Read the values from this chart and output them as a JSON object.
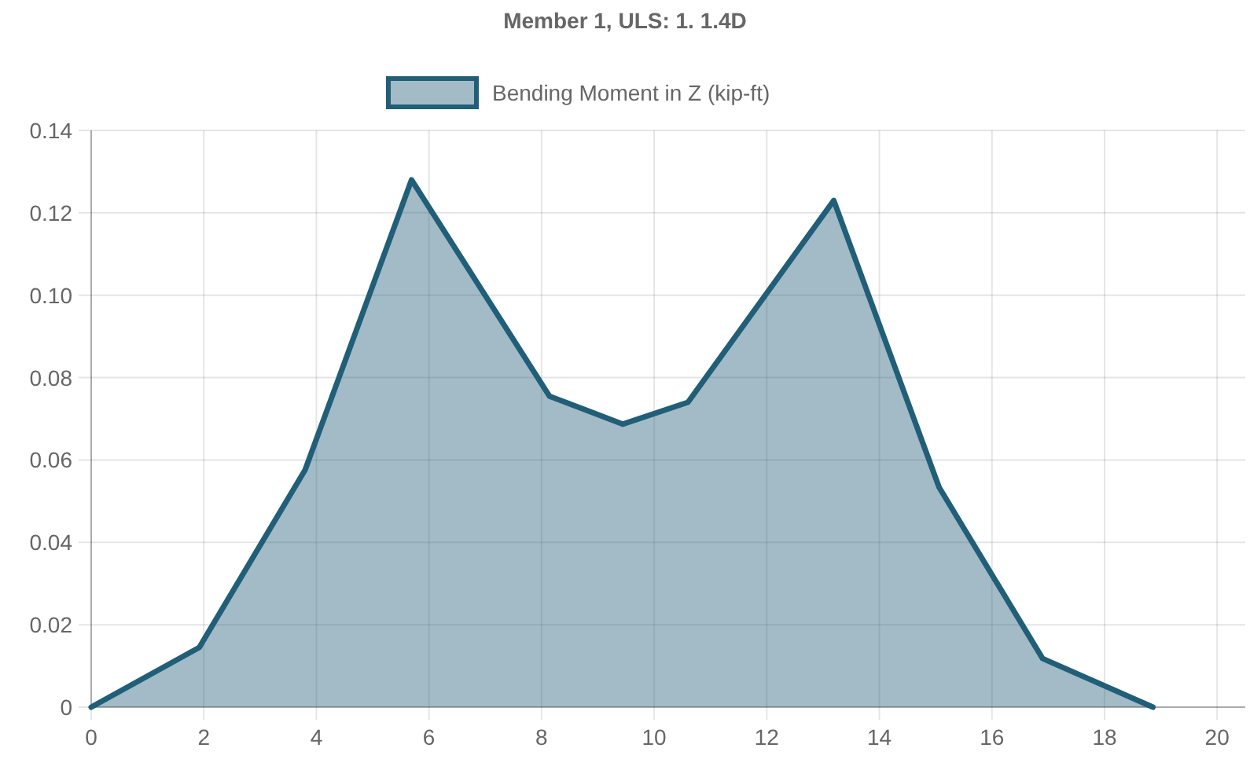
{
  "chart_data": {
    "type": "area",
    "title": "Member 1, ULS: 1. 1.4D",
    "x": [
      0,
      1.92,
      3.8,
      5.69,
      8.14,
      9.44,
      10.6,
      13.19,
      15.06,
      16.9,
      18.86
    ],
    "series": [
      {
        "name": "Bending Moment in Z (kip-ft)",
        "color": "#215e78",
        "values": [
          0,
          0.0145,
          0.0576,
          0.128,
          0.0755,
          0.0687,
          0.074,
          0.123,
          0.0534,
          0.0118,
          0
        ]
      }
    ],
    "xlim": [
      0,
      20.5
    ],
    "xticks": [
      0,
      2,
      4,
      6,
      8,
      10,
      12,
      14,
      16,
      18,
      20
    ],
    "ylim": [
      0,
      0.14
    ],
    "yticks": [
      0,
      {
        "value": 0.02,
        "label": "0.02"
      },
      {
        "value": 0.04,
        "label": "0.04"
      },
      {
        "value": 0.06,
        "label": "0.06"
      },
      {
        "value": 0.08,
        "label": "0.08"
      },
      {
        "value": 0.1,
        "label": "0.10"
      },
      {
        "value": 0.12,
        "label": "0.12"
      },
      {
        "value": 0.14,
        "label": "0.14"
      }
    ],
    "grid": true,
    "legend": "top",
    "marker": "none",
    "line_style": "solid"
  }
}
